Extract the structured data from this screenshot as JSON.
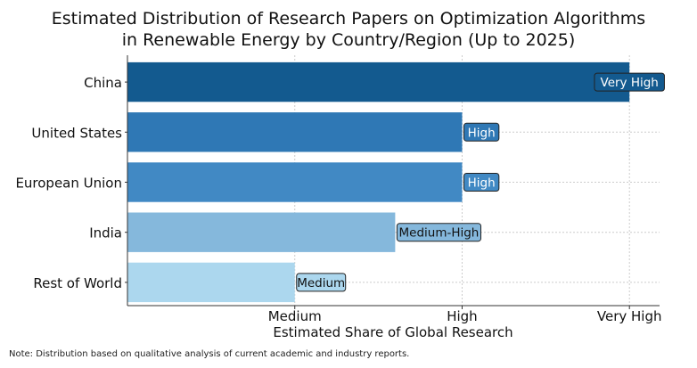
{
  "chart_data": {
    "type": "bar",
    "orientation": "horizontal",
    "title_lines": [
      "Estimated Distribution of Research Papers on Optimization Algorithms",
      "in Renewable Energy by Country/Region (Up to 2025)"
    ],
    "categories": [
      "China",
      "United States",
      "European Union",
      "India",
      "Rest of World"
    ],
    "values": [
      4,
      3,
      3,
      2.6,
      2
    ],
    "value_labels": [
      "Very High",
      "High",
      "High",
      "Medium-High",
      "Medium"
    ],
    "colors": [
      "#135a8f",
      "#2f78b5",
      "#4189c4",
      "#85b8dc",
      "#acd7ee"
    ],
    "xlabel": "Estimated Share of Global Research",
    "ylabel": "",
    "xticks": [
      {
        "value": 2,
        "label": "Medium"
      },
      {
        "value": 3,
        "label": "High"
      },
      {
        "value": 4,
        "label": "Very High"
      }
    ],
    "xlim": [
      1,
      4.18
    ],
    "grid": true,
    "note": "Note: Distribution based on qualitative analysis of current academic and industry reports."
  }
}
